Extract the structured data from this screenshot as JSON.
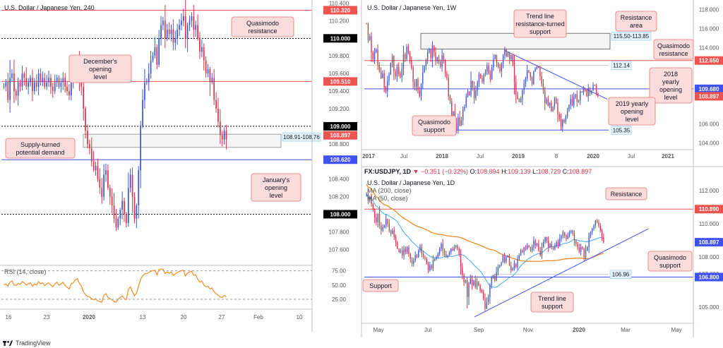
{
  "brand": {
    "logo_text": "TradingView",
    "accent": "#2962ff"
  },
  "colors": {
    "up": "#3a57d6",
    "down": "#d8354a",
    "red_line": "#ef5350",
    "blue_line": "#3f51f5",
    "orange": "#f08a24",
    "light_blue": "#42a5f5",
    "label_bg": "#fbdcdc",
    "label_border": "#e57373"
  },
  "chart_data": [
    {
      "id": "h4",
      "type": "candlestick",
      "title": "U.S. Dollar / Japanese Yen, 240",
      "timeframe": "240",
      "y_axis_ticks": [
        "110.400",
        "110.200",
        "109.800",
        "109.600",
        "109.400",
        "109.200",
        "108.800",
        "108.600",
        "108.400",
        "108.200",
        "107.800",
        "107.600"
      ],
      "x_axis_ticks": [
        "16",
        "23",
        "2020",
        "13",
        "20",
        "27",
        "Feb",
        "10"
      ],
      "ylim": [
        107.45,
        110.42
      ],
      "price_tags": [
        {
          "label": "110.320",
          "value": 110.32,
          "color": "#ef5350"
        },
        {
          "label": "110.000",
          "value": 110.0,
          "color": "#000000"
        },
        {
          "label": "109.510",
          "value": 109.51,
          "color": "#ef5350"
        },
        {
          "label": "109.000",
          "value": 109.0,
          "color": "#000000"
        },
        {
          "label": "108.897",
          "value": 108.897,
          "color": "#ef5350"
        },
        {
          "label": "108.620",
          "value": 108.62,
          "color": "#3f51f5"
        },
        {
          "label": "108.000",
          "value": 108.0,
          "color": "#000000"
        }
      ],
      "horizontal_lines": [
        {
          "value": 110.32,
          "style": "solid",
          "color": "#ef5350"
        },
        {
          "value": 110.0,
          "style": "dotted",
          "color": "#000000"
        },
        {
          "value": 109.51,
          "style": "solid",
          "color": "#ef5350"
        },
        {
          "value": 109.0,
          "style": "dotted",
          "color": "#000000"
        },
        {
          "value": 108.62,
          "style": "solid",
          "color": "#3f51f5"
        },
        {
          "value": 108.0,
          "style": "dotted",
          "color": "#000000"
        }
      ],
      "zone": {
        "top": 108.91,
        "bottom": 108.76,
        "label": "108.91-108.76"
      },
      "annotations": [
        "Quasimodo resistance",
        "December's opening level",
        "Supply-turned potential demand",
        "January's opening level"
      ],
      "closes": [
        109.45,
        109.5,
        109.3,
        109.55,
        109.6,
        109.4,
        109.35,
        109.5,
        109.45,
        109.6,
        109.55,
        109.45,
        109.5,
        109.55,
        109.4,
        109.5,
        109.45,
        109.6,
        109.5,
        109.55,
        109.45,
        109.5,
        109.55,
        109.45,
        109.4,
        109.5,
        109.55,
        109.45,
        109.5,
        109.55,
        109.45,
        109.4,
        109.35,
        109.5,
        109.55,
        109.65,
        109.7,
        109.55,
        109.45,
        109.2,
        108.95,
        108.8,
        108.75,
        108.6,
        108.5,
        108.55,
        108.4,
        108.3,
        108.2,
        108.45,
        108.5,
        108.3,
        108.2,
        108.1,
        107.95,
        107.85,
        107.95,
        108.05,
        108.15,
        108.0,
        107.9,
        108.3,
        108.45,
        108.2,
        107.95,
        108.1,
        108.5,
        109.0,
        109.3,
        109.5,
        109.5,
        109.6,
        109.75,
        109.8,
        109.9,
        109.7,
        110.0,
        110.15,
        110.2,
        110.0,
        110.1,
        110.05,
        110.1,
        109.95,
        110.0,
        110.1,
        110.15,
        110.2,
        110.25,
        110.0,
        110.15,
        110.2,
        110.25,
        110.1,
        110.15,
        110.0,
        109.85,
        109.9,
        109.75,
        109.6,
        109.65,
        109.5,
        109.55,
        109.3,
        109.2,
        109.05,
        108.9,
        108.85,
        108.95,
        108.85
      ],
      "rsi": {
        "label": "RSI (14, close)",
        "ticks": [
          "75.00",
          "50.00",
          "25.00"
        ],
        "ylim": [
          15,
          82
        ],
        "values": [
          50,
          52,
          48,
          55,
          57,
          50,
          49,
          53,
          51,
          56,
          54,
          50,
          52,
          54,
          48,
          52,
          50,
          56,
          52,
          54,
          49,
          52,
          54,
          50,
          47,
          52,
          55,
          50,
          52,
          55,
          49,
          46,
          43,
          52,
          54,
          59,
          61,
          53,
          48,
          38,
          33,
          30,
          29,
          26,
          24,
          26,
          22,
          21,
          20,
          32,
          35,
          28,
          26,
          24,
          21,
          20,
          25,
          28,
          31,
          26,
          24,
          42,
          47,
          38,
          31,
          36,
          48,
          60,
          66,
          70,
          70,
          72,
          74,
          75,
          76,
          68,
          77,
          78,
          78,
          70,
          73,
          71,
          73,
          67,
          69,
          72,
          74,
          75,
          76,
          66,
          71,
          73,
          74,
          67,
          68,
          60,
          55,
          57,
          50,
          47,
          48,
          43,
          45,
          38,
          35,
          32,
          29,
          28,
          32,
          29
        ]
      }
    },
    {
      "id": "w1",
      "type": "candlestick",
      "title": "U.S. Dollar / Japanese Yen, 1W",
      "timeframe": "1W",
      "y_axis_ticks": [
        "118.000",
        "116.000",
        "114.000",
        "106.000",
        "104.000"
      ],
      "x_axis_ticks": [
        "2017",
        "Jul",
        "2018",
        "Jul",
        "2019",
        "8",
        "2020",
        "Jul",
        "2021"
      ],
      "ylim": [
        103.3,
        118.7
      ],
      "price_tags": [
        {
          "label": "112.650",
          "value": 112.65,
          "color": "#ef5350"
        },
        {
          "label": "109.680",
          "value": 109.68,
          "color": "#3f51f5"
        },
        {
          "label": "108.897",
          "value": 108.897,
          "color": "#ef5350"
        }
      ],
      "horizontal_lines": [
        {
          "value": 112.65,
          "style": "solid",
          "color": "#ef5350"
        },
        {
          "value": 109.68,
          "style": "solid",
          "color": "#3f51f5"
        },
        {
          "value": 105.35,
          "style": "solid",
          "color": "#3f51f5"
        }
      ],
      "zone": {
        "top": 115.5,
        "bottom": 113.85,
        "label": "115.50-113.85"
      },
      "level_labels": [
        "112.14",
        "105.35"
      ],
      "annotations": [
        "Trend line resistance-turned support",
        "Resistance area",
        "Quasimodo resistance",
        "2018 yearly opening level",
        "2019 yearly opening level",
        "Quasimodo support"
      ],
      "closes": [
        116.5,
        114.8,
        115.2,
        113.5,
        112.8,
        113.5,
        113.8,
        112.2,
        111.5,
        110.8,
        111.3,
        109.8,
        109.4,
        110.5,
        111.2,
        112.4,
        113.1,
        111.5,
        111.0,
        112.0,
        111.3,
        110.9,
        111.8,
        113.3,
        112.8,
        114.1,
        113.4,
        112.6,
        111.9,
        110.4,
        109.9,
        110.7,
        109.5,
        108.9,
        110.2,
        111.4,
        112.1,
        112.7,
        113.5,
        113.8,
        112.9,
        114.2,
        113.5,
        112.6,
        113.0,
        112.5,
        112.0,
        113.2,
        112.7,
        111.3,
        110.8,
        108.9,
        108.4,
        106.8,
        107.3,
        106.1,
        105.3,
        106.7,
        105.8,
        106.4,
        107.5,
        107.8,
        108.9,
        109.4,
        109.0,
        110.5,
        109.8,
        108.7,
        109.5,
        110.3,
        111.2,
        110.8,
        110.4,
        111.2,
        111.5,
        112.1,
        111.3,
        110.7,
        111.9,
        112.8,
        113.2,
        112.4,
        112.0,
        111.5,
        112.3,
        113.2,
        113.8,
        113.1,
        113.5,
        112.8,
        113.2,
        112.4,
        110.4,
        109.1,
        108.6,
        108.3,
        108.6,
        109.5,
        110.2,
        110.8,
        111.6,
        111.4,
        110.9,
        110.2,
        111.5,
        111.8,
        112.0,
        111.9,
        111.0,
        110.2,
        109.5,
        108.2,
        108.6,
        107.9,
        108.2,
        107.3,
        107.8,
        108.7,
        108.2,
        107.0,
        106.5,
        105.7,
        106.4,
        106.2,
        106.8,
        107.4,
        108.0,
        108.6,
        107.9,
        108.8,
        109.1,
        108.3,
        108.5,
        109.4,
        109.3,
        109.7,
        109.5,
        108.9,
        109.7,
        109.2,
        109.5,
        110.1,
        110.0,
        109.2,
        108.9
      ]
    },
    {
      "id": "d1",
      "type": "candlestick",
      "title": "U.S. Dollar / Japanese Yen, 1D",
      "symbol_line": "FX:USDJPY, 1D",
      "ohlc": {
        "o_label": "O:",
        "o": "108.894",
        "h_label": "H:",
        "h": "109.139",
        "l_label": "L:",
        "l": "108.729",
        "c_label": "C:",
        "c": "108.897",
        "change": "−0.351 (−0.32%)",
        "last": "108.897"
      },
      "indicators": [
        "MA (200, close)",
        "MA (50, close)"
      ],
      "y_axis_ticks": [
        "112.000",
        "111.000",
        "110.000",
        "108.000",
        "107.000",
        "105.000"
      ],
      "x_axis_ticks": [
        "May",
        "Jul",
        "Sep",
        "Nov",
        "2020",
        "Mar",
        "May"
      ],
      "ylim": [
        104.1,
        112.6
      ],
      "price_tags": [
        {
          "label": "110.890",
          "value": 110.89,
          "color": "#ef5350"
        },
        {
          "label": "108.897",
          "value": 108.897,
          "color": "#3f51f5"
        },
        {
          "label": "106.800",
          "value": 106.8,
          "color": "#3f51f5"
        }
      ],
      "horizontal_lines": [
        {
          "value": 110.89,
          "style": "solid",
          "color": "#ef5350"
        },
        {
          "value": 106.8,
          "style": "solid",
          "color": "#3f51f5"
        }
      ],
      "level_labels": [
        "106.96"
      ],
      "annotations": [
        "Resistance",
        "Quasimodo support",
        "Support",
        "Trend line support"
      ],
      "closes": [
        111.8,
        111.4,
        111.6,
        111.2,
        110.9,
        110.4,
        110.1,
        110.6,
        109.9,
        109.6,
        109.8,
        109.9,
        110.3,
        110.0,
        109.6,
        109.4,
        109.6,
        109.2,
        108.9,
        108.5,
        108.3,
        108.4,
        108.1,
        108.5,
        108.3,
        108.6,
        108.2,
        107.9,
        107.6,
        107.8,
        108.1,
        108.0,
        108.4,
        108.6,
        108.2,
        108.0,
        107.9,
        107.6,
        107.2,
        107.5,
        107.3,
        107.8,
        107.9,
        108.0,
        108.2,
        108.5,
        108.8,
        108.4,
        108.2,
        108.0,
        108.1,
        108.3,
        108.5,
        108.4,
        108.6,
        108.7,
        108.5,
        108.2,
        107.4,
        106.9,
        106.5,
        106.6,
        105.6,
        106.4,
        106.7,
        106.3,
        106.6,
        106.2,
        106.5,
        106.3,
        106.0,
        105.9,
        105.5,
        104.9,
        105.3,
        105.6,
        106.3,
        106.8,
        106.9,
        106.6,
        107.1,
        107.4,
        107.5,
        107.7,
        108.1,
        107.7,
        108.0,
        108.1,
        107.5,
        107.2,
        107.3,
        107.6,
        107.4,
        107.9,
        108.1,
        108.4,
        108.3,
        108.6,
        108.5,
        108.7,
        108.6,
        108.4,
        108.6,
        109.0,
        108.7,
        108.8,
        108.4,
        108.1,
        108.6,
        108.9,
        109.2,
        109.0,
        108.6,
        108.8,
        108.6,
        108.5,
        108.7,
        108.9,
        108.7,
        109.1,
        109.3,
        109.5,
        109.3,
        109.1,
        109.3,
        109.5,
        109.6,
        109.4,
        109.0,
        108.8,
        108.6,
        108.3,
        108.6,
        108.5,
        108.0,
        108.4,
        108.6,
        109.3,
        109.5,
        109.7,
        109.9,
        110.2,
        110.1,
        109.9,
        109.6,
        109.2,
        108.9
      ]
    }
  ]
}
